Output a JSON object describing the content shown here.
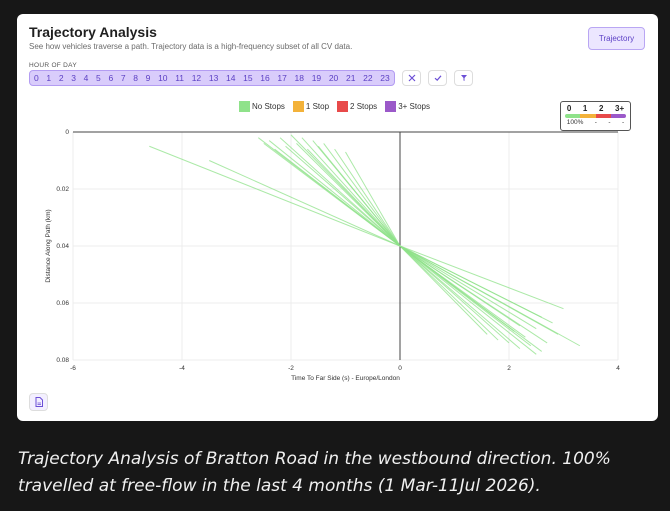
{
  "header": {
    "title": "Trajectory Analysis",
    "subtitle": "See how vehicles traverse a path. Trajectory data is a high-frequency subset of all CV data.",
    "trajectory_button": "Trajectory"
  },
  "hour_of_day": {
    "label": "HOUR OF DAY",
    "hours": [
      "0",
      "1",
      "2",
      "3",
      "4",
      "5",
      "6",
      "7",
      "8",
      "9",
      "10",
      "11",
      "12",
      "13",
      "14",
      "15",
      "16",
      "17",
      "18",
      "19",
      "20",
      "21",
      "22",
      "23"
    ],
    "clear_icon": "x-icon",
    "confirm_icon": "check-icon",
    "filter_icon": "filter-icon"
  },
  "legend": [
    {
      "label": "No Stops",
      "color": "#8fe28a"
    },
    {
      "label": "1 Stop",
      "color": "#f3b23a"
    },
    {
      "label": "2 Stops",
      "color": "#e84a4a"
    },
    {
      "label": "3+ Stops",
      "color": "#9b59c9"
    }
  ],
  "stop_summary": {
    "headers": [
      "0",
      "1",
      "2",
      "3+"
    ],
    "colors": [
      "#8fe28a",
      "#f3b23a",
      "#e84a4a",
      "#9b59c9"
    ],
    "values": [
      "100%",
      "-",
      "-",
      "-"
    ]
  },
  "chart_data": {
    "type": "line",
    "xlabel": "Time To Far Side (s) - Europe/London",
    "ylabel": "Distance Along Path (km)",
    "xlim": [
      -6,
      4
    ],
    "ylim": [
      0,
      0.08
    ],
    "y_inverted": true,
    "x_ticks": [
      "-6",
      "-4",
      "-2",
      "0",
      "2",
      "4"
    ],
    "y_ticks": [
      "0",
      "0.02",
      "0.04",
      "0.06",
      "0.08"
    ],
    "line_color": "#8fe28a",
    "series": [
      {
        "x": [
          -4.6,
          0
        ],
        "y": [
          0.005,
          0.04
        ]
      },
      {
        "x": [
          -3.5,
          0
        ],
        "y": [
          0.01,
          0.04
        ]
      },
      {
        "x": [
          -2.6,
          0
        ],
        "y": [
          0.002,
          0.04
        ]
      },
      {
        "x": [
          -2.5,
          0
        ],
        "y": [
          0.004,
          0.04
        ]
      },
      {
        "x": [
          -2.4,
          0
        ],
        "y": [
          0.003,
          0.04
        ]
      },
      {
        "x": [
          -2.3,
          0
        ],
        "y": [
          0.006,
          0.04
        ]
      },
      {
        "x": [
          -2.2,
          0
        ],
        "y": [
          0.002,
          0.04
        ]
      },
      {
        "x": [
          -2.1,
          0
        ],
        "y": [
          0.005,
          0.04
        ]
      },
      {
        "x": [
          -2.0,
          0
        ],
        "y": [
          0.001,
          0.04
        ]
      },
      {
        "x": [
          -1.9,
          0
        ],
        "y": [
          0.004,
          0.04
        ]
      },
      {
        "x": [
          -1.8,
          0
        ],
        "y": [
          0.002,
          0.04
        ]
      },
      {
        "x": [
          -1.7,
          0
        ],
        "y": [
          0.006,
          0.04
        ]
      },
      {
        "x": [
          -1.6,
          0
        ],
        "y": [
          0.003,
          0.04
        ]
      },
      {
        "x": [
          -1.5,
          0
        ],
        "y": [
          0.005,
          0.04
        ]
      },
      {
        "x": [
          -1.4,
          0
        ],
        "y": [
          0.004,
          0.04
        ]
      },
      {
        "x": [
          -1.2,
          0
        ],
        "y": [
          0.006,
          0.04
        ]
      },
      {
        "x": [
          -1.0,
          0
        ],
        "y": [
          0.007,
          0.04
        ]
      },
      {
        "x": [
          0,
          2.5
        ],
        "y": [
          0.04,
          0.078
        ]
      },
      {
        "x": [
          0,
          2.6
        ],
        "y": [
          0.04,
          0.077
        ]
      },
      {
        "x": [
          0,
          2.4
        ],
        "y": [
          0.04,
          0.075
        ]
      },
      {
        "x": [
          0,
          2.2
        ],
        "y": [
          0.04,
          0.076
        ]
      },
      {
        "x": [
          0,
          2.0
        ],
        "y": [
          0.04,
          0.074
        ]
      },
      {
        "x": [
          0,
          1.8
        ],
        "y": [
          0.04,
          0.073
        ]
      },
      {
        "x": [
          0,
          2.3
        ],
        "y": [
          0.04,
          0.072
        ]
      },
      {
        "x": [
          0,
          2.7
        ],
        "y": [
          0.04,
          0.074
        ]
      },
      {
        "x": [
          0,
          3.3
        ],
        "y": [
          0.04,
          0.075
        ]
      },
      {
        "x": [
          0,
          2.9
        ],
        "y": [
          0.04,
          0.071
        ]
      },
      {
        "x": [
          0,
          2.5
        ],
        "y": [
          0.04,
          0.069
        ]
      },
      {
        "x": [
          0,
          2.1
        ],
        "y": [
          0.04,
          0.07
        ]
      },
      {
        "x": [
          0,
          2.8
        ],
        "y": [
          0.04,
          0.067
        ]
      },
      {
        "x": [
          0,
          1.6
        ],
        "y": [
          0.04,
          0.071
        ]
      },
      {
        "x": [
          0,
          2.6
        ],
        "y": [
          0.04,
          0.065
        ]
      },
      {
        "x": [
          0,
          3.0
        ],
        "y": [
          0.04,
          0.062
        ]
      },
      {
        "x": [
          0,
          2.2
        ],
        "y": [
          0.04,
          0.068
        ]
      }
    ]
  },
  "caption": "Trajectory Analysis of Bratton Road in the westbound direction. 100% travelled at free-flow in the last 4 months (1 Mar-11Jul 2026)."
}
